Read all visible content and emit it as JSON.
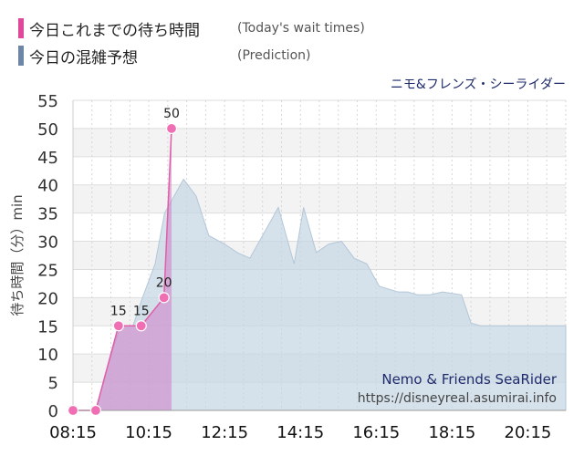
{
  "legend": [
    {
      "label": "今日これまでの待ち時間",
      "sub": "(Today's wait times)",
      "color": "#e0489a"
    },
    {
      "label": "今日の混雑予想",
      "sub": "(Prediction)",
      "color": "#6d86a6"
    }
  ],
  "chart_data": {
    "type": "area",
    "title": "ニモ&フレンズ・シーライダー",
    "ylabel": "待ち時間（分）min",
    "xlabel": "",
    "ylim": [
      0,
      55
    ],
    "yticks": [
      0,
      5,
      10,
      15,
      20,
      25,
      30,
      35,
      40,
      45,
      50,
      55
    ],
    "xlim": [
      "08:15",
      "21:15"
    ],
    "xticks": [
      "08:15",
      "10:15",
      "12:15",
      "14:15",
      "16:15",
      "18:15",
      "20:15"
    ],
    "grid": true,
    "series": [
      {
        "name": "今日の混雑予想",
        "color": "#6d86a6",
        "x": [
          "08:15",
          "08:52",
          "09:05",
          "09:30",
          "09:50",
          "10:05",
          "10:25",
          "10:40",
          "11:00",
          "11:10",
          "11:30",
          "11:50",
          "12:15",
          "12:35",
          "12:55",
          "13:20",
          "13:40",
          "14:05",
          "14:20",
          "14:40",
          "15:00",
          "15:20",
          "15:40",
          "16:00",
          "16:20",
          "16:50",
          "17:05",
          "17:20",
          "17:40",
          "18:00",
          "18:30",
          "18:45",
          "19:00",
          "19:10",
          "19:25",
          "20:00",
          "20:30",
          "21:15"
        ],
        "values": [
          0,
          0,
          6,
          15,
          15,
          20,
          26,
          35,
          39,
          41,
          38,
          31,
          29.5,
          28,
          27,
          32,
          36,
          26,
          36,
          28,
          29.5,
          30,
          27,
          26,
          22,
          21,
          21,
          20.5,
          20.5,
          21,
          20.5,
          15.5,
          15,
          15,
          15,
          15,
          15,
          15
        ]
      },
      {
        "name": "今日これまでの待ち時間",
        "color": "#e0489a",
        "x": [
          "08:15",
          "08:51",
          "09:27",
          "10:03",
          "10:39",
          "10:51"
        ],
        "values": [
          0,
          0,
          15,
          15,
          20,
          50
        ],
        "point_labels": [
          "",
          "",
          "15",
          "15",
          "20",
          "50"
        ]
      }
    ]
  },
  "watermark": {
    "name_en": "Nemo & Friends SeaRider",
    "url": "https://disneyreal.asumirai.info"
  }
}
